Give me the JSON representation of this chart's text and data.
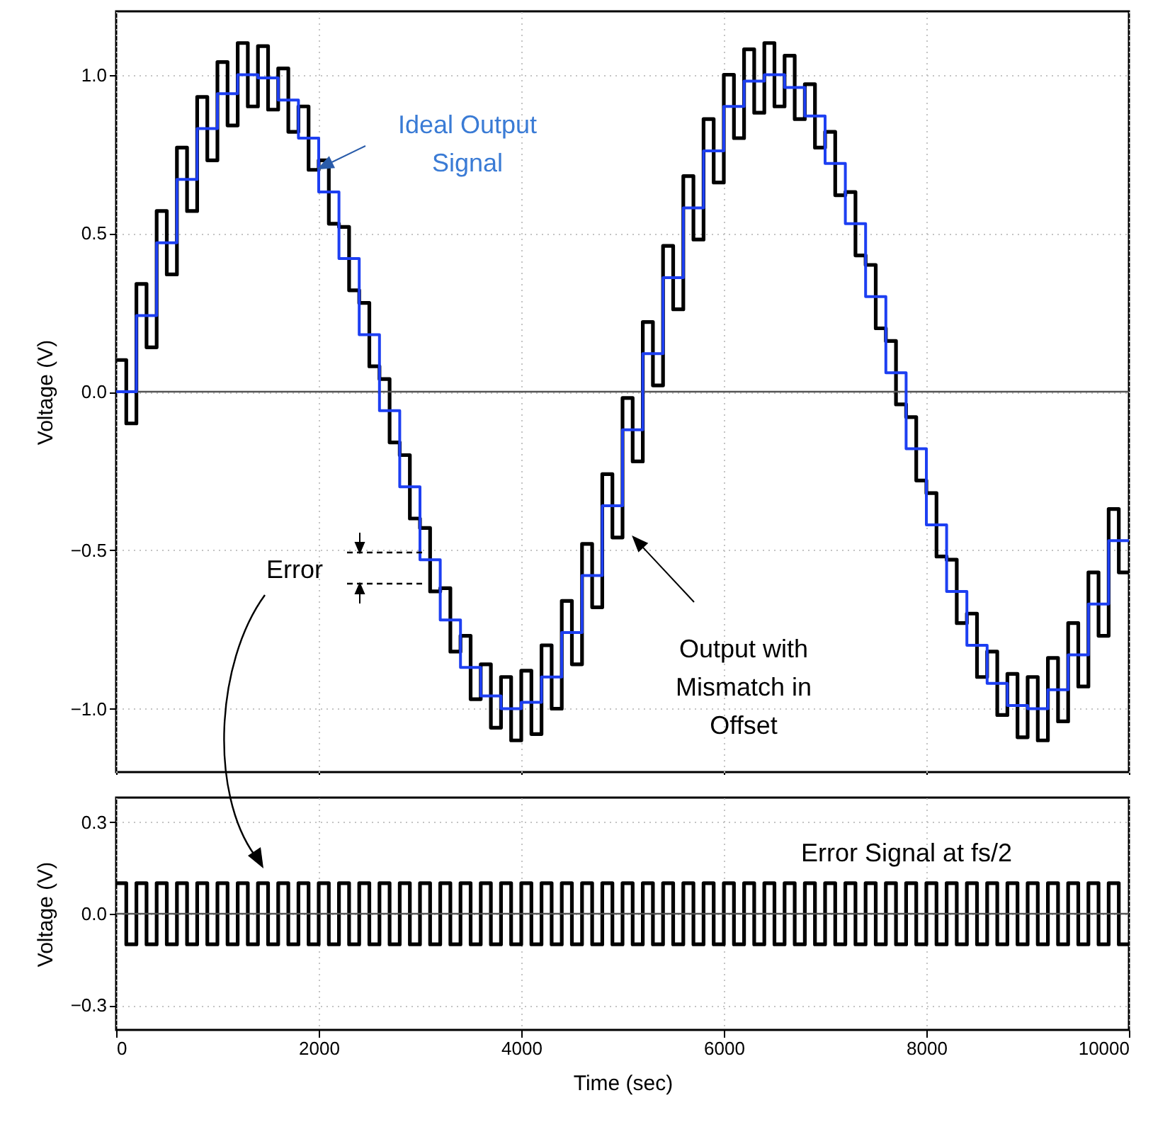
{
  "chart_data": [
    {
      "type": "step",
      "ylabel": "Voltage (V)",
      "xlim": [
        0,
        10000
      ],
      "xticks": [
        0,
        2000,
        4000,
        6000,
        8000,
        10000
      ],
      "ylim": [
        -1.2,
        1.2
      ],
      "yticks": [
        {
          "value": -1,
          "label": "−1.0"
        },
        {
          "value": -0.5,
          "label": "−0.5"
        },
        {
          "value": 0,
          "label": "0.0"
        },
        0.5,
        {
          "value": 1,
          "label": "1.0"
        }
      ],
      "tick_labels": "y",
      "grid": true,
      "ref_lines": [
        {
          "axis": "y",
          "value": 0,
          "color": "#555555"
        }
      ],
      "series": [
        {
          "color": "#000000",
          "x": [
            0,
            100,
            200,
            300,
            400,
            500,
            600,
            700,
            800,
            900,
            1000,
            1100,
            1200,
            1300,
            1400,
            1500,
            1600,
            1700,
            1800,
            1900,
            2000,
            2100,
            2200,
            2300,
            2400,
            2500,
            2600,
            2700,
            2800,
            2900,
            3000,
            3100,
            3200,
            3300,
            3400,
            3500,
            3600,
            3700,
            3800,
            3900,
            4000,
            4100,
            4200,
            4300,
            4400,
            4500,
            4600,
            4700,
            4800,
            4900,
            5000,
            5100,
            5200,
            5300,
            5400,
            5500,
            5600,
            5700,
            5800,
            5900,
            6000,
            6100,
            6200,
            6300,
            6400,
            6500,
            6600,
            6700,
            6800,
            6900,
            7000,
            7100,
            7200,
            7300,
            7400,
            7500,
            7600,
            7700,
            7800,
            7900,
            8000,
            8100,
            8200,
            8300,
            8400,
            8500,
            8600,
            8700,
            8800,
            8900,
            9000,
            9100,
            9200,
            9300,
            9400,
            9500,
            9600,
            9700,
            9800,
            9900,
            10000
          ],
          "values": [
            0.1,
            -0.1,
            0.34,
            0.14,
            0.57,
            0.37,
            0.77,
            0.57,
            0.93,
            0.73,
            1.04,
            0.84,
            1.1,
            0.9,
            1.09,
            0.89,
            1.02,
            0.82,
            0.9,
            0.7,
            0.73,
            0.53,
            0.52,
            0.32,
            0.28,
            0.08,
            0.04,
            -0.16,
            -0.2,
            -0.4,
            -0.43,
            -0.63,
            -0.62,
            -0.82,
            -0.77,
            -0.97,
            -0.86,
            -1.06,
            -0.9,
            -1.1,
            -0.88,
            -1.08,
            -0.8,
            -1.0,
            -0.66,
            -0.86,
            -0.48,
            -0.68,
            -0.26,
            -0.46,
            -0.02,
            -0.22,
            0.22,
            0.02,
            0.46,
            0.26,
            0.68,
            0.48,
            0.86,
            0.66,
            1.0,
            0.8,
            1.08,
            0.88,
            1.1,
            0.9,
            1.06,
            0.86,
            0.97,
            0.77,
            0.82,
            0.62,
            0.63,
            0.43,
            0.4,
            0.2,
            0.16,
            -0.04,
            -0.08,
            -0.28,
            -0.32,
            -0.52,
            -0.53,
            -0.73,
            -0.7,
            -0.9,
            -0.82,
            -1.02,
            -0.89,
            -1.09,
            -0.9,
            -1.1,
            -0.84,
            -1.04,
            -0.73,
            -0.93,
            -0.57,
            -0.77,
            -0.37,
            -0.57,
            -0.57
          ]
        },
        {
          "color": "#1d3ff2",
          "x": [
            0,
            200,
            400,
            600,
            800,
            1000,
            1200,
            1400,
            1600,
            1800,
            2000,
            2200,
            2400,
            2600,
            2800,
            3000,
            3200,
            3400,
            3600,
            3800,
            4000,
            4200,
            4400,
            4600,
            4800,
            5000,
            5200,
            5400,
            5600,
            5800,
            6000,
            6200,
            6400,
            6600,
            6800,
            7000,
            7200,
            7400,
            7600,
            7800,
            8000,
            8200,
            8400,
            8600,
            8800,
            9000,
            9200,
            9400,
            9600,
            9800,
            10000
          ],
          "values": [
            0.0,
            0.24,
            0.47,
            0.67,
            0.83,
            0.94,
            1.0,
            0.99,
            0.92,
            0.8,
            0.63,
            0.42,
            0.18,
            -0.06,
            -0.3,
            -0.53,
            -0.72,
            -0.87,
            -0.96,
            -1.0,
            -0.98,
            -0.9,
            -0.76,
            -0.58,
            -0.36,
            -0.12,
            0.12,
            0.36,
            0.58,
            0.76,
            0.9,
            0.98,
            1.0,
            0.96,
            0.87,
            0.72,
            0.53,
            0.3,
            0.06,
            -0.18,
            -0.42,
            -0.63,
            -0.8,
            -0.92,
            -0.99,
            -1.0,
            -0.94,
            -0.83,
            -0.67,
            -0.47,
            -0.47
          ]
        }
      ],
      "annotations": [
        "Ideal Output Signal",
        "Output with Mismatch in Offset",
        "Error"
      ]
    },
    {
      "type": "step",
      "xlabel": "Time (sec)",
      "ylabel": "Voltage (V)",
      "xlim": [
        0,
        10000
      ],
      "xticks": [
        0,
        2000,
        4000,
        6000,
        8000,
        10000
      ],
      "ylim": [
        -0.38,
        0.38
      ],
      "yticks": [
        {
          "value": -0.3,
          "label": "−0.3"
        },
        {
          "value": 0,
          "label": "0.0"
        },
        0.3
      ],
      "grid": true,
      "ref_lines": [
        {
          "axis": "y",
          "value": 0,
          "color": "#555555"
        }
      ],
      "series": [
        {
          "color": "#000000",
          "x": [
            0,
            100,
            200,
            300,
            400,
            500,
            600,
            700,
            800,
            900,
            1000,
            1100,
            1200,
            1300,
            1400,
            1500,
            1600,
            1700,
            1800,
            1900,
            2000,
            2100,
            2200,
            2300,
            2400,
            2500,
            2600,
            2700,
            2800,
            2900,
            3000,
            3100,
            3200,
            3300,
            3400,
            3500,
            3600,
            3700,
            3800,
            3900,
            4000,
            4100,
            4200,
            4300,
            4400,
            4500,
            4600,
            4700,
            4800,
            4900,
            5000,
            5100,
            5200,
            5300,
            5400,
            5500,
            5600,
            5700,
            5800,
            5900,
            6000,
            6100,
            6200,
            6300,
            6400,
            6500,
            6600,
            6700,
            6800,
            6900,
            7000,
            7100,
            7200,
            7300,
            7400,
            7500,
            7600,
            7700,
            7800,
            7900,
            8000,
            8100,
            8200,
            8300,
            8400,
            8500,
            8600,
            8700,
            8800,
            8900,
            9000,
            9100,
            9200,
            9300,
            9400,
            9500,
            9600,
            9700,
            9800,
            9900,
            10000
          ],
          "values": [
            0.1,
            -0.1,
            0.1,
            -0.1,
            0.1,
            -0.1,
            0.1,
            -0.1,
            0.1,
            -0.1,
            0.1,
            -0.1,
            0.1,
            -0.1,
            0.1,
            -0.1,
            0.1,
            -0.1,
            0.1,
            -0.1,
            0.1,
            -0.1,
            0.1,
            -0.1,
            0.1,
            -0.1,
            0.1,
            -0.1,
            0.1,
            -0.1,
            0.1,
            -0.1,
            0.1,
            -0.1,
            0.1,
            -0.1,
            0.1,
            -0.1,
            0.1,
            -0.1,
            0.1,
            -0.1,
            0.1,
            -0.1,
            0.1,
            -0.1,
            0.1,
            -0.1,
            0.1,
            -0.1,
            0.1,
            -0.1,
            0.1,
            -0.1,
            0.1,
            -0.1,
            0.1,
            -0.1,
            0.1,
            -0.1,
            0.1,
            -0.1,
            0.1,
            -0.1,
            0.1,
            -0.1,
            0.1,
            -0.1,
            0.1,
            -0.1,
            0.1,
            -0.1,
            0.1,
            -0.1,
            0.1,
            -0.1,
            0.1,
            -0.1,
            0.1,
            -0.1,
            0.1,
            -0.1,
            0.1,
            -0.1,
            0.1,
            -0.1,
            0.1,
            -0.1,
            0.1,
            -0.1,
            0.1,
            -0.1,
            0.1,
            -0.1,
            0.1,
            -0.1,
            0.1,
            -0.1,
            0.1,
            -0.1,
            -0.1
          ]
        }
      ],
      "annotations": [
        "Error Signal at fs/2"
      ]
    }
  ]
}
